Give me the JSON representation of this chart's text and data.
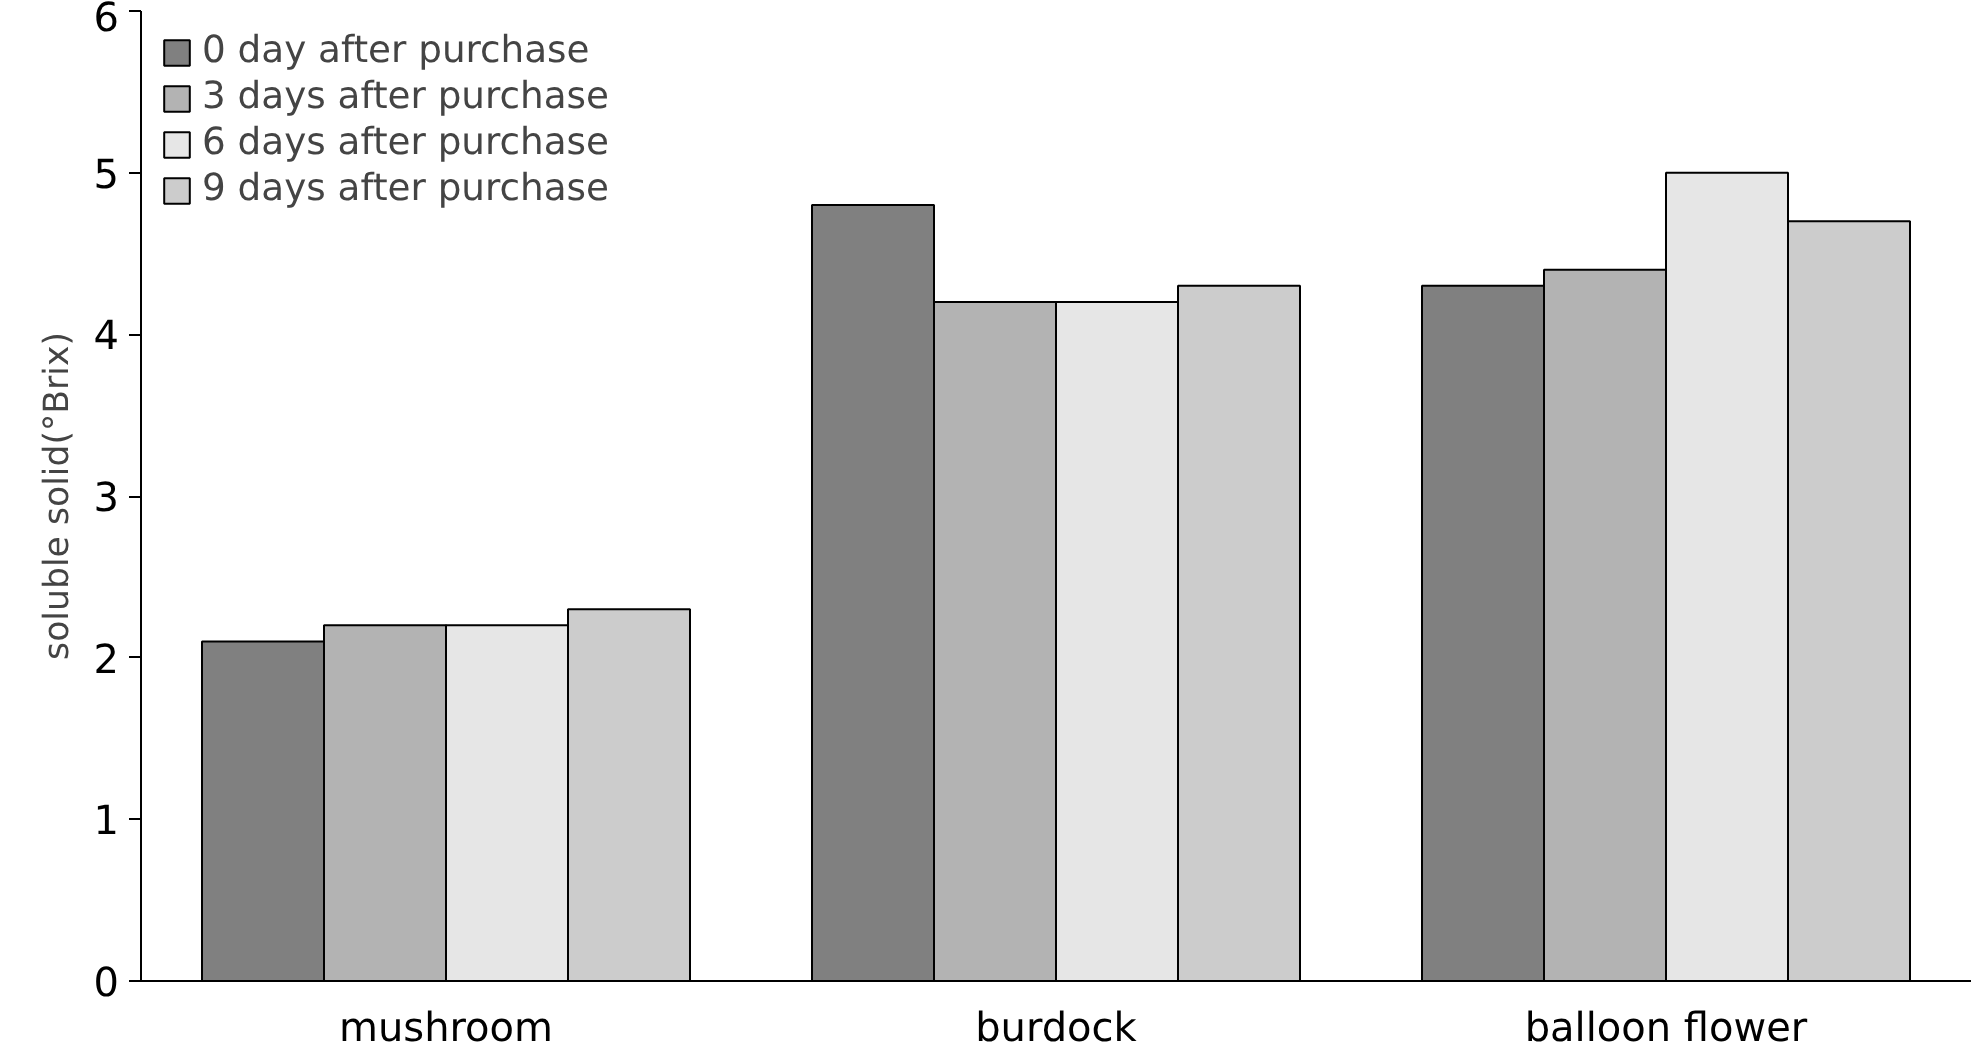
{
  "chart_data": {
    "type": "bar",
    "ylabel": "soluble solid(°Brix)",
    "categories": [
      "mushroom",
      "burdock",
      "balloon flower"
    ],
    "series": [
      {
        "name": "0 day after purchase",
        "color": "#808080",
        "values": [
          2.1,
          4.8,
          4.3
        ]
      },
      {
        "name": "3 days after purchase",
        "color": "#b3b3b3",
        "values": [
          2.2,
          4.2,
          4.4
        ]
      },
      {
        "name": "6 days after purchase",
        "color": "#e6e6e6",
        "values": [
          2.2,
          4.2,
          5.0
        ]
      },
      {
        "name": "9 days after purchase",
        "color": "#cccccc",
        "values": [
          2.3,
          4.3,
          4.7
        ]
      }
    ],
    "ylim": [
      0,
      6
    ],
    "yticks": [
      0,
      1,
      2,
      3,
      4,
      5,
      6
    ],
    "grid": false,
    "legend": "top left"
  }
}
